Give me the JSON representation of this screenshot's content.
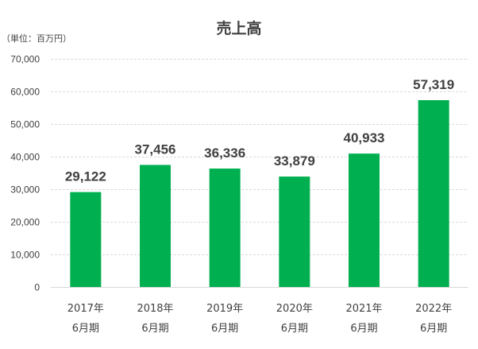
{
  "colors": {
    "bar": "#00b050",
    "text": "#404040",
    "grid": "#d9d9d9"
  },
  "chart_data": {
    "type": "bar",
    "title": "売上高",
    "unit_label": "（単位：百万円）",
    "xlabel": "",
    "ylabel": "",
    "categories": [
      [
        "2017年",
        "6月期"
      ],
      [
        "2018年",
        "6月期"
      ],
      [
        "2019年",
        "6月期"
      ],
      [
        "2020年",
        "6月期"
      ],
      [
        "2021年",
        "6月期"
      ],
      [
        "2022年",
        "6月期"
      ]
    ],
    "values": [
      29122,
      37456,
      36336,
      33879,
      40933,
      57319
    ],
    "value_labels": [
      "29,122",
      "37,456",
      "36,336",
      "33,879",
      "40,933",
      "57,319"
    ],
    "ylim": [
      0,
      70000
    ],
    "y_ticks": [
      0,
      10000,
      20000,
      30000,
      40000,
      50000,
      60000,
      70000
    ],
    "y_tick_labels": [
      "0",
      "10,000",
      "20,000",
      "30,000",
      "40,000",
      "50,000",
      "60,000",
      "70,000"
    ],
    "grid": true,
    "legend": "none"
  }
}
